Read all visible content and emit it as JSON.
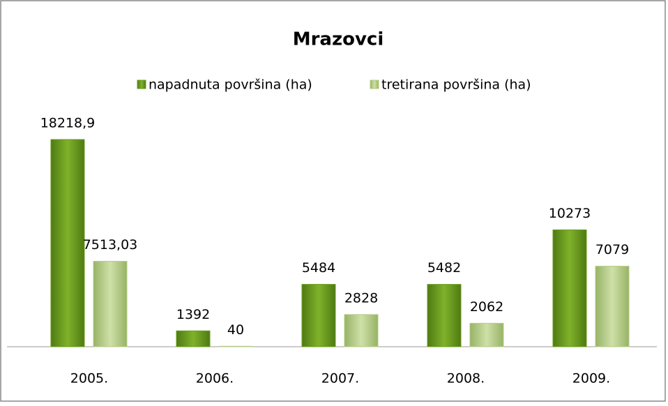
{
  "chart_data": {
    "type": "bar",
    "title": "Mrazovci",
    "categories": [
      "2005.",
      "2006.",
      "2007.",
      "2008.",
      "2009."
    ],
    "series": [
      {
        "name": "napadnuta površina (ha)",
        "color": "#6b9b1e",
        "values": [
          18218.9,
          1392,
          5484,
          5482,
          10273
        ],
        "value_labels": [
          "18218,9",
          "1392",
          "5484",
          "5482",
          "10273"
        ]
      },
      {
        "name": "tretirana površina (ha)",
        "color": "#b4cb86",
        "values": [
          7513.03,
          40,
          2828,
          2062,
          7079
        ],
        "value_labels": [
          "7513,03",
          "40",
          "2828",
          "2062",
          "7079"
        ]
      }
    ],
    "legend": "top"
  }
}
